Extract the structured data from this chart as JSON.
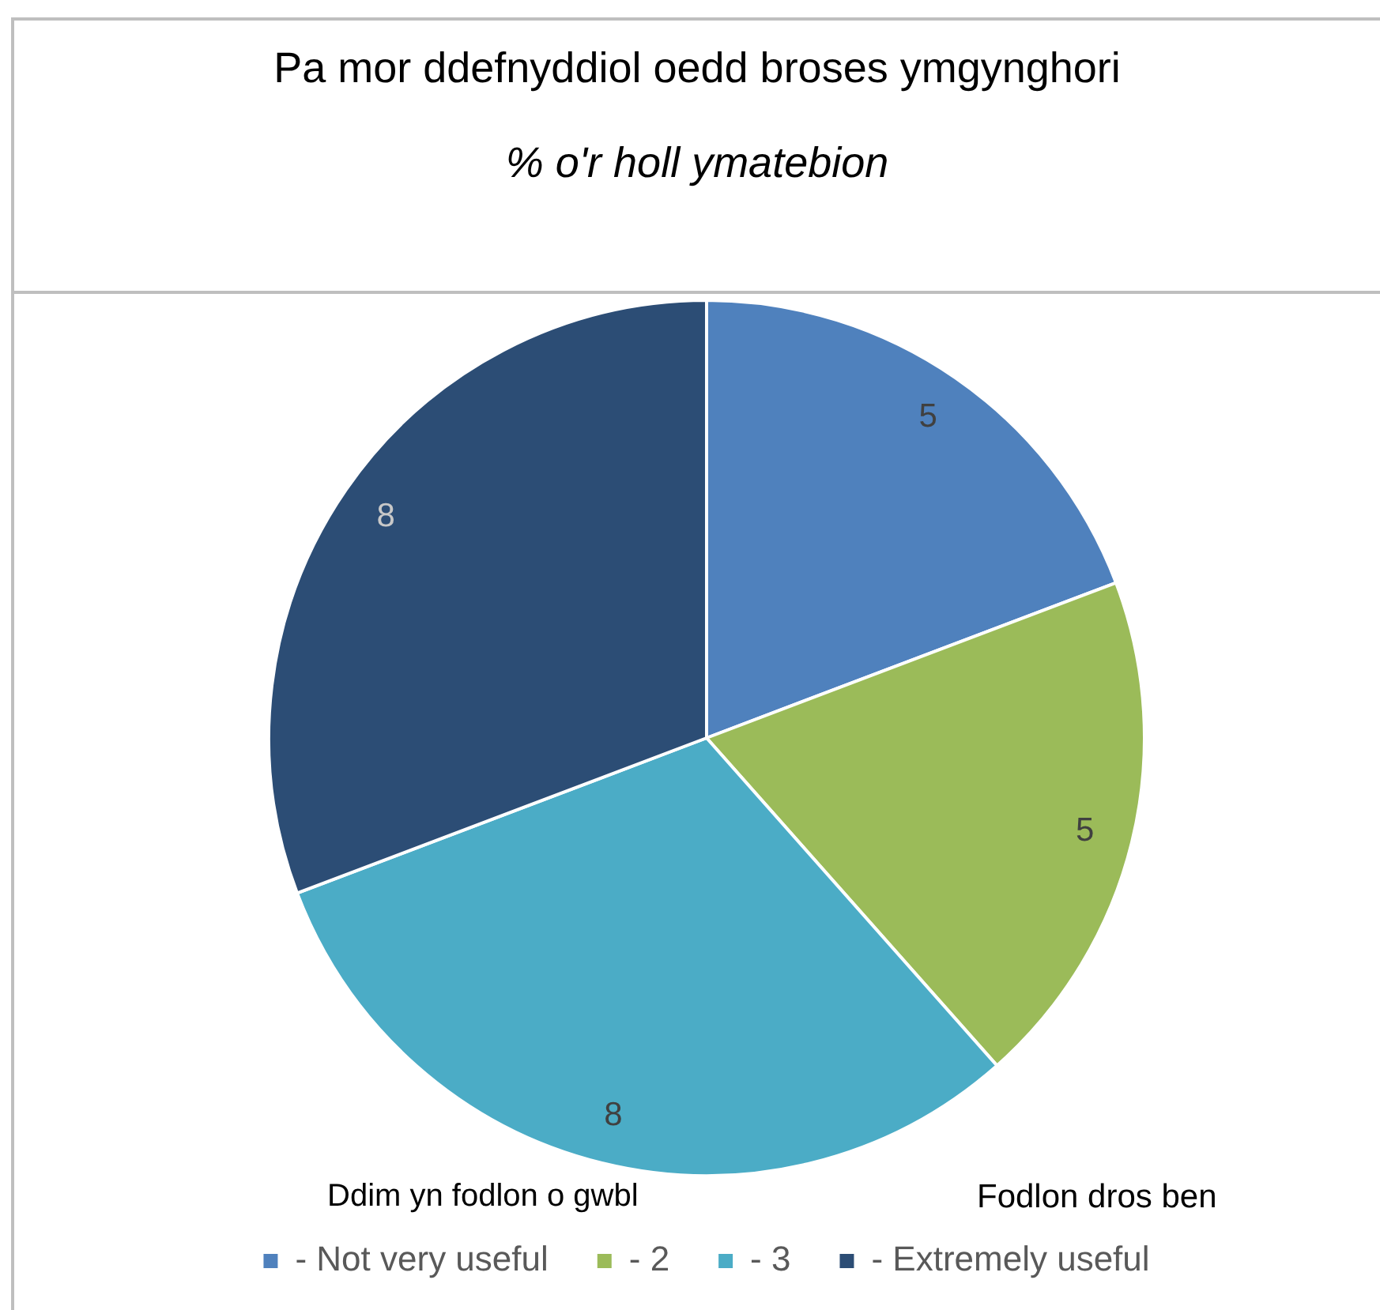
{
  "chart_data": {
    "type": "pie",
    "title": "Pa mor ddefnyddiol oedd broses ymgynghori",
    "subtitle": "% o'r holl ymatebion",
    "categories": [
      "- Not very useful",
      "- 2",
      "- 3",
      "- Extremely useful"
    ],
    "values": [
      5,
      5,
      8,
      8
    ],
    "colors": [
      "#4f81bd",
      "#9bbb59",
      "#4bacc6",
      "#2c4d75"
    ],
    "data_labels": true,
    "legend": "bottom",
    "annotations": [
      "Ddim yn fodlon o gwbl",
      "Fodlon dros ben"
    ]
  }
}
